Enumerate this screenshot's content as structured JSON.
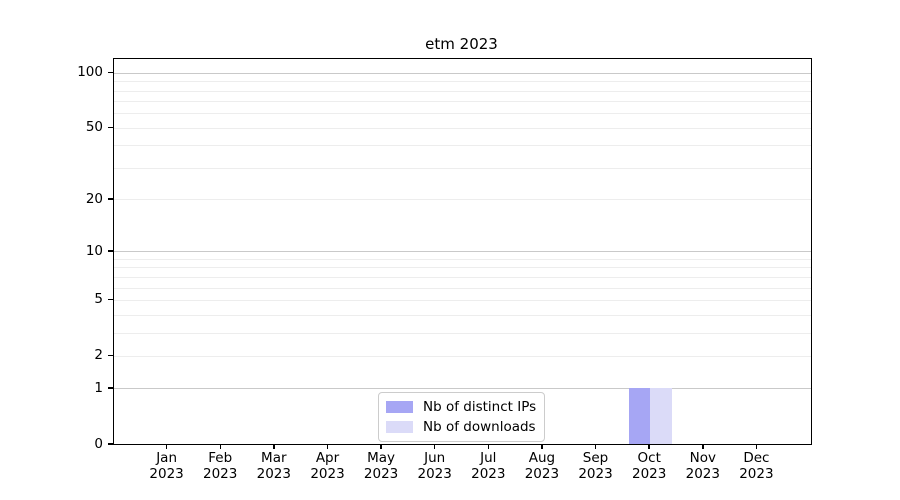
{
  "figure": {
    "title": "etm 2023"
  },
  "chart_data": {
    "type": "bar",
    "title": "etm 2023",
    "categories": [
      "Jan 2023",
      "Feb 2023",
      "Mar 2023",
      "Apr 2023",
      "May 2023",
      "Jun 2023",
      "Jul 2023",
      "Aug 2023",
      "Sep 2023",
      "Oct 2023",
      "Nov 2023",
      "Dec 2023"
    ],
    "series": [
      {
        "name": "Nb of distinct IPs",
        "color": "#a6a6f4",
        "values": [
          0,
          0,
          0,
          0,
          0,
          0,
          0,
          0,
          0,
          1,
          0,
          0
        ]
      },
      {
        "name": "Nb of downloads",
        "color": "#dbdbf8",
        "values": [
          0,
          0,
          0,
          0,
          0,
          0,
          0,
          0,
          0,
          1,
          0,
          0
        ]
      }
    ],
    "xlabel": "",
    "ylabel": "",
    "yscale": "log1p",
    "ylim": [
      0,
      119
    ],
    "yticks": [
      0,
      1,
      2,
      5,
      10,
      20,
      50,
      100
    ],
    "ytick_labels": [
      "0",
      "1",
      "2",
      "5",
      "10",
      "20",
      "50",
      "100"
    ],
    "major_gridlines": [
      1,
      10,
      100
    ],
    "minor_gridlines": [
      2,
      3,
      4,
      5,
      6,
      7,
      8,
      9,
      20,
      30,
      40,
      50,
      60,
      70,
      80,
      90
    ],
    "grid": "on",
    "legend_position": "lower center inside",
    "bar_group_width_fraction": 0.8,
    "colors": {
      "grid_major": "#c9c9c9",
      "grid_minor": "#ededed",
      "spine": "#000000",
      "text": "#000000"
    }
  }
}
